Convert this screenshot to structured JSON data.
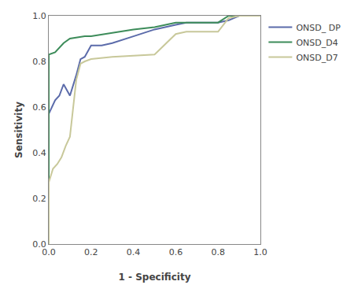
{
  "chart_data": {
    "type": "line",
    "xlabel": "1 - Specificity",
    "ylabel": "Sensitivity",
    "xlim": [
      0.0,
      1.0
    ],
    "ylim": [
      0.0,
      1.0
    ],
    "xticks": [
      {
        "value": 0.0,
        "label": "0.0"
      },
      0.2,
      0.4,
      0.6,
      0.8,
      {
        "value": 1.0,
        "label": "1.0"
      }
    ],
    "yticks": [
      {
        "value": 0.0,
        "label": "0.0"
      },
      0.2,
      0.4,
      0.6,
      0.8,
      {
        "value": 1.0,
        "label": "1.0"
      }
    ],
    "grid": false,
    "legend": "right",
    "series": [
      {
        "name": "ONSD_ DP",
        "color": "#5b6baa",
        "x": [
          0.0,
          0.0,
          0.03,
          0.05,
          0.07,
          0.1,
          0.13,
          0.15,
          0.17,
          0.2,
          0.25,
          0.3,
          0.4,
          0.5,
          0.6,
          0.65,
          0.7,
          0.8,
          0.85,
          0.9,
          1.0
        ],
        "values": [
          0.0,
          0.57,
          0.63,
          0.65,
          0.7,
          0.65,
          0.74,
          0.81,
          0.82,
          0.87,
          0.87,
          0.88,
          0.91,
          0.94,
          0.96,
          0.97,
          0.97,
          0.97,
          0.98,
          1.0,
          1.0
        ]
      },
      {
        "name": "ONSD_D4",
        "color": "#3d8c5a",
        "x": [
          0.0,
          0.0,
          0.03,
          0.05,
          0.07,
          0.1,
          0.17,
          0.2,
          0.4,
          0.5,
          0.6,
          0.65,
          0.7,
          0.8,
          0.85,
          1.0
        ],
        "values": [
          0.0,
          0.83,
          0.84,
          0.86,
          0.88,
          0.9,
          0.91,
          0.91,
          0.94,
          0.95,
          0.97,
          0.97,
          0.97,
          0.97,
          1.0,
          1.0
        ]
      },
      {
        "name": "ONSD_D7",
        "color": "#c8c89a",
        "x": [
          0.0,
          0.0,
          0.02,
          0.04,
          0.06,
          0.08,
          0.1,
          0.13,
          0.15,
          0.17,
          0.2,
          0.3,
          0.5,
          0.6,
          0.65,
          0.7,
          0.8,
          0.85,
          0.9,
          1.0
        ],
        "values": [
          0.0,
          0.27,
          0.33,
          0.35,
          0.38,
          0.43,
          0.47,
          0.72,
          0.79,
          0.8,
          0.81,
          0.82,
          0.83,
          0.92,
          0.93,
          0.93,
          0.93,
          0.99,
          1.0,
          1.0
        ]
      }
    ]
  }
}
